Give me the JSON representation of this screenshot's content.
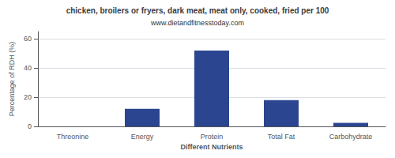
{
  "chart_data": {
    "type": "bar",
    "title": "chicken, broilers or fryers, dark meat, meat only, cooked, fried per 100",
    "subtitle": "www.dietandfitnesstoday.com",
    "categories": [
      "Threonine",
      "Energy",
      "Protein",
      "Total Fat",
      "Carbohydrate"
    ],
    "values": [
      0,
      12,
      52,
      18,
      2.5
    ],
    "color": "#2b4590",
    "xlabel": "Different Nutrients",
    "ylabel": "Percentage of RDH (%)",
    "ylim": [
      0,
      65
    ],
    "yticks": [
      0,
      20,
      40,
      60
    ],
    "grid": true
  }
}
